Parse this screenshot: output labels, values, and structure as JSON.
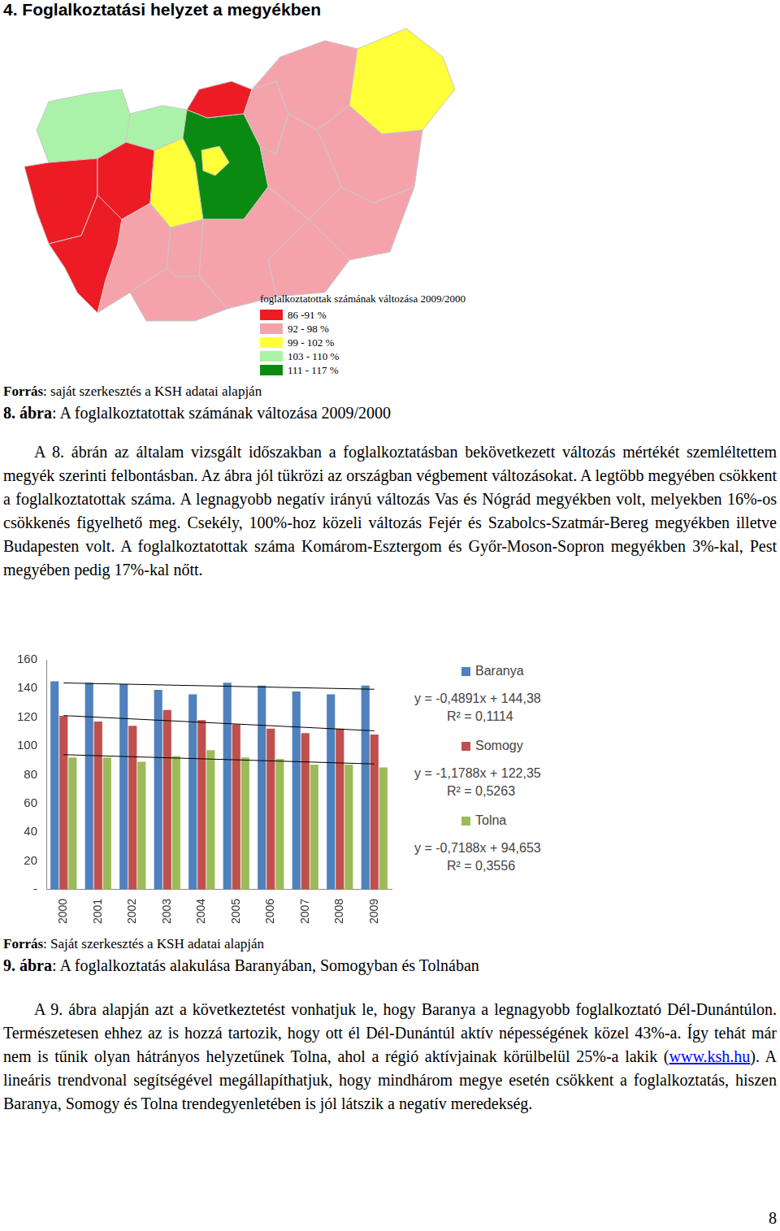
{
  "heading": "4. Foglalkoztatási helyzet a megyékben",
  "map": {
    "legend_title": "foglalkoztatottak számának változása 2009/2000",
    "legend": [
      {
        "label": "86 -91 %",
        "color": "#ed1c24"
      },
      {
        "label": "92 - 98 %",
        "color": "#f4a3ab"
      },
      {
        "label": "99 - 102 %",
        "color": "#ffff3a"
      },
      {
        "label": "103 - 110 %",
        "color": "#aaf2a8"
      },
      {
        "label": "111 - 117 %",
        "color": "#0b8a12"
      }
    ],
    "regions": [
      {
        "class": 3
      },
      {
        "class": 3
      },
      {
        "class": 0
      },
      {
        "class": 0
      },
      {
        "class": 0
      },
      {
        "class": 1
      },
      {
        "class": 2
      },
      {
        "class": 4
      },
      {
        "class": 2
      },
      {
        "class": 0
      },
      {
        "class": 1
      },
      {
        "class": 1
      },
      {
        "class": 2
      },
      {
        "class": 1
      },
      {
        "class": 1
      },
      {
        "class": 1
      },
      {
        "class": 1
      },
      {
        "class": 1
      },
      {
        "class": 1
      },
      {
        "class": 1
      }
    ]
  },
  "figure8": {
    "source": {
      "bold": "Forrás",
      "text": ": saját szerkesztés a KSH adatai alapján"
    },
    "caption": {
      "bold": "8. ábra",
      "text": ": A foglalkoztatottak számának változása 2009/2000"
    }
  },
  "paragraph1": "A 8. ábrán az általam vizsgált időszakban a foglalkoztatásban bekövetkezett változás mértékét szemléltettem megyék szerinti felbontásban. Az ábra jól tükrözi az országban végbement változásokat. A legtöbb megyében csökkent a foglalkoztatottak száma. A legnagyobb negatív irányú változás Vas és Nógrád megyékben volt, melyekben 16%-os csökkenés figyelhető meg. Csekély, 100%-hoz közeli változás Fejér és Szabolcs-Szatmár-Bereg megyékben illetve Budapesten volt. A foglalkoztatottak száma Komárom-Esztergom és Győr-Moson-Sopron megyékben 3%-kal, Pest megyében pedig 17%-kal nőtt.",
  "chart_data": {
    "type": "bar",
    "categories": [
      "2000",
      "2001",
      "2002",
      "2003",
      "2004",
      "2005",
      "2006",
      "2007",
      "2008",
      "2009"
    ],
    "series": [
      {
        "name": "Baranya",
        "color": "#4f81bd",
        "values": [
          145,
          144,
          143,
          139,
          136,
          144,
          142,
          138,
          136,
          142
        ],
        "trendline": {
          "equation": "y = -0,4891x + 144,38",
          "r2": "R² = 0,1114",
          "slope": -0.4891,
          "intercept": 144.38
        }
      },
      {
        "name": "Somogy",
        "color": "#c0504d",
        "values": [
          121,
          117,
          114,
          125,
          118,
          115,
          112,
          109,
          112,
          108
        ],
        "trendline": {
          "equation": "y = -1,1788x + 122,35",
          "r2": "R² = 0,5263",
          "slope": -1.1788,
          "intercept": 122.35
        }
      },
      {
        "name": "Tolna",
        "color": "#9bbb59",
        "values": [
          92,
          92,
          89,
          93,
          97,
          92,
          91,
          87,
          87,
          85
        ],
        "trendline": {
          "equation": "y = -0,7188x + 94,653",
          "r2": "R² = 0,3556",
          "slope": -0.7188,
          "intercept": 94.653
        }
      }
    ],
    "ylim": [
      0,
      160
    ],
    "yticks": [
      {
        "value": 0,
        "label": "-"
      },
      20,
      40,
      60,
      80,
      100,
      120,
      140,
      160
    ],
    "grid": false,
    "legend": "right"
  },
  "figure9": {
    "source": {
      "bold": "Forrás",
      "text": ": Saját szerkesztés a KSH adatai alapján"
    },
    "caption": {
      "bold": "9. ábra",
      "text": ": A foglalkoztatás alakulása Baranyában, Somogyban és Tolnában"
    }
  },
  "paragraph2": [
    {
      "text": "A 9. ábra alapján azt a következtetést vonhatjuk le, hogy Baranya a legnagyobb foglalkoztató Dél-Dunántúlon. Természetesen ehhez az is hozzá tartozik, hogy ott él Dél-Dunántúl aktív népességének közel 43%-a. Így tehát már nem is tűnik olyan hátrányos helyzetűnek Tolna, ahol a régió aktívjainak körülbelül 25%-a lakik ("
    },
    {
      "text": "www.ksh.hu",
      "link": true
    },
    {
      "text": "). A lineáris trendvonal segítségével megállapíthatjuk, hogy mindhárom megye esetén csökkent a foglalkoztatás, hiszen Baranya, Somogy és Tolna trendegyenletében is jól látszik a negatív meredekség."
    }
  ],
  "page_number": 8
}
